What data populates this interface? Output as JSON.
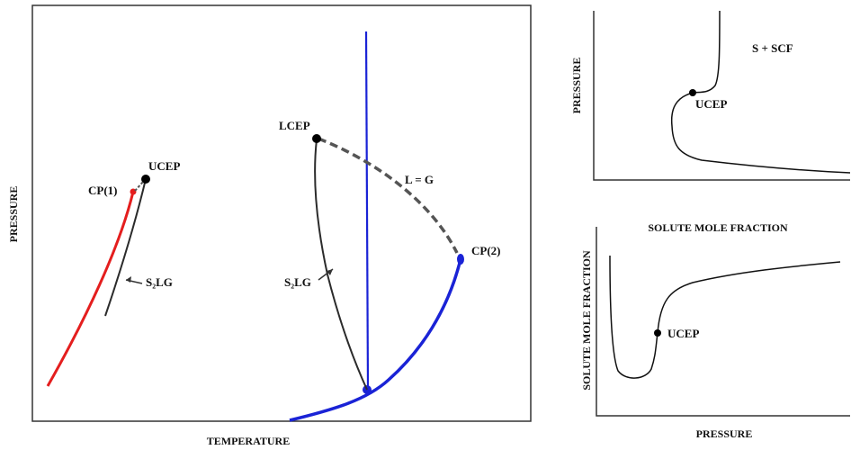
{
  "colors": {
    "axis": "#333333",
    "curve": "#2b2b2b",
    "red": "#e41e1e",
    "blue": "#1a23d6",
    "dashed": "#555555"
  },
  "main_diagram": {
    "x_axis_label": "TEMPERATURE",
    "y_axis_label": "PRESSURE",
    "labels": {
      "ucep": "UCEP",
      "cp1": "CP(1)",
      "s2lg_left": "S₂LG",
      "lcep": "LCEP",
      "l_equals_g": "L = G",
      "cp2": "CP(2)",
      "s2lg_right": "S₂LG"
    }
  },
  "top_right_diagram": {
    "x_axis_label": "SOLUTE MOLE FRACTION",
    "y_axis_label": "PRESSURE",
    "region_label": "S + SCF",
    "point_label": "UCEP"
  },
  "bottom_right_diagram": {
    "x_axis_label": "PRESSURE",
    "y_axis_label": "SOLUTE MOLE FRACTION",
    "point_label": "UCEP"
  }
}
